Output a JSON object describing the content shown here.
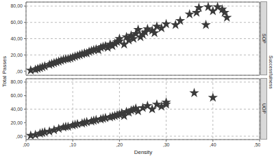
{
  "chart_data": [
    {
      "type": "scatter",
      "title": "SOP",
      "ylabel": "Total Passes",
      "annotations": [
        "Successfulness"
      ],
      "color": "#3a3a3a",
      "marker": "star",
      "grid": true,
      "tick_labels": "y",
      "x": [
        0.01,
        0.02,
        0.025,
        0.03,
        0.035,
        0.04,
        0.05,
        0.055,
        0.06,
        0.065,
        0.07,
        0.075,
        0.08,
        0.085,
        0.09,
        0.095,
        0.1,
        0.105,
        0.11,
        0.115,
        0.12,
        0.125,
        0.13,
        0.135,
        0.14,
        0.145,
        0.15,
        0.155,
        0.16,
        0.165,
        0.17,
        0.175,
        0.18,
        0.185,
        0.19,
        0.195,
        0.2,
        0.2,
        0.21,
        0.215,
        0.22,
        0.225,
        0.23,
        0.235,
        0.24,
        0.245,
        0.25,
        0.255,
        0.26,
        0.27,
        0.275,
        0.28,
        0.29,
        0.3,
        0.32,
        0.33,
        0.35,
        0.365,
        0.37,
        0.385,
        0.39,
        0.4,
        0.41,
        0.42,
        0.425,
        0.43
      ],
      "values": [
        1,
        2,
        3,
        4,
        5,
        6,
        8,
        9,
        10,
        11,
        12,
        13,
        14,
        15,
        15,
        16,
        17,
        18,
        19,
        20,
        21,
        22,
        22,
        24,
        25,
        26,
        27,
        26,
        29,
        30,
        31,
        29,
        33,
        31,
        34,
        36,
        37,
        40,
        33,
        42,
        38,
        44,
        40,
        46,
        51,
        42,
        45,
        48,
        52,
        50,
        47,
        55,
        53,
        58,
        57,
        62,
        70,
        72,
        78,
        57,
        79,
        74,
        79,
        76,
        72,
        66
      ],
      "xlim": [
        0,
        0.5
      ],
      "xticks": [
        {
          "value": 0,
          "label": ",00"
        },
        {
          "value": 0.1,
          "label": ",10"
        },
        {
          "value": 0.2,
          "label": ",20"
        },
        {
          "value": 0.3,
          "label": ",30"
        },
        {
          "value": 0.4,
          "label": ",40"
        },
        {
          "value": 0.5,
          "label": ",50"
        }
      ],
      "ylim": [
        -5,
        85
      ],
      "yticks": [
        {
          "value": 0,
          "label": ",00"
        },
        {
          "value": 20,
          "label": "20,00"
        },
        {
          "value": 40,
          "label": "40,00"
        },
        {
          "value": 60,
          "label": "60,00"
        },
        {
          "value": 80,
          "label": "80,00"
        }
      ]
    },
    {
      "type": "scatter",
      "title": "UOP",
      "xlabel": "Density",
      "color": "#3a3a3a",
      "marker": "star",
      "grid": true,
      "x": [
        0.01,
        0.02,
        0.03,
        0.035,
        0.04,
        0.05,
        0.06,
        0.07,
        0.08,
        0.085,
        0.09,
        0.1,
        0.105,
        0.11,
        0.12,
        0.125,
        0.13,
        0.14,
        0.145,
        0.15,
        0.16,
        0.165,
        0.17,
        0.18,
        0.185,
        0.19,
        0.195,
        0.2,
        0.205,
        0.21,
        0.215,
        0.22,
        0.225,
        0.23,
        0.235,
        0.24,
        0.25,
        0.26,
        0.27,
        0.28,
        0.29,
        0.3,
        0.3,
        0.36,
        0.4
      ],
      "values": [
        1,
        2,
        4,
        5,
        6,
        7,
        9,
        11,
        13,
        14,
        14,
        16,
        17,
        18,
        19,
        20,
        21,
        22,
        23,
        24,
        25,
        26,
        27,
        28,
        29,
        30,
        31,
        32,
        34,
        30,
        36,
        35,
        38,
        39,
        41,
        37,
        42,
        45,
        40,
        47,
        44,
        50,
        47,
        64,
        57
      ],
      "xlim": [
        0,
        0.5
      ],
      "xticks": [
        {
          "value": 0,
          "label": ",00"
        },
        {
          "value": 0.1,
          "label": ",10"
        },
        {
          "value": 0.2,
          "label": ",20"
        },
        {
          "value": 0.3,
          "label": ",30"
        },
        {
          "value": 0.4,
          "label": ",40"
        },
        {
          "value": 0.5,
          "label": ",50"
        }
      ],
      "ylim": [
        -5,
        85
      ],
      "yticks": [
        {
          "value": 0,
          "label": ",00"
        },
        {
          "value": 20,
          "label": "20,00"
        },
        {
          "value": 40,
          "label": "40,00"
        },
        {
          "value": 60,
          "label": "60,00"
        },
        {
          "value": 80,
          "label": "80,00"
        }
      ]
    }
  ]
}
